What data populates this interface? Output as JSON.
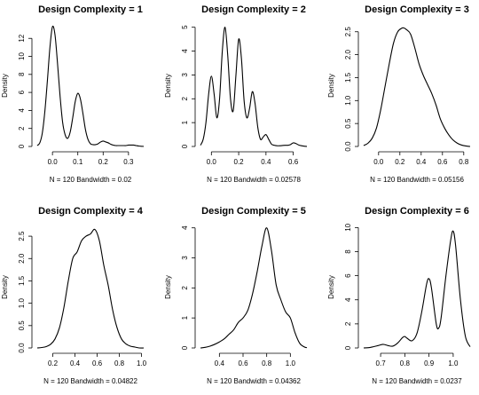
{
  "chart_data": [
    {
      "type": "line",
      "title": "Design Complexity =  1",
      "xlabel": "N = 120   Bandwidth = 0.02",
      "ylabel": "Density",
      "xlim": [
        -0.06,
        0.36
      ],
      "ylim": [
        0,
        13.5
      ],
      "xticks": [
        0.0,
        0.1,
        0.2,
        0.3
      ],
      "xtick_labels": [
        "0.0",
        "0.1",
        "0.2",
        "0.3"
      ],
      "yticks": [
        0,
        2,
        4,
        6,
        8,
        10,
        12
      ],
      "ytick_labels": [
        "0",
        "2",
        "4",
        "6",
        "8",
        "10",
        "12"
      ],
      "series": [
        {
          "x": [
            -0.06,
            -0.05,
            -0.04,
            -0.03,
            -0.02,
            -0.01,
            0.0,
            0.01,
            0.02,
            0.03,
            0.04,
            0.05,
            0.06,
            0.07,
            0.08,
            0.09,
            0.1,
            0.11,
            0.12,
            0.13,
            0.14,
            0.15,
            0.16,
            0.17,
            0.18,
            0.19,
            0.2,
            0.21,
            0.22,
            0.23,
            0.24,
            0.25,
            0.26,
            0.27,
            0.28,
            0.29,
            0.3,
            0.31,
            0.32,
            0.33,
            0.34,
            0.35,
            0.36
          ],
          "y": [
            0.1,
            0.4,
            1.5,
            3.9,
            7.3,
            11.0,
            13.3,
            12.4,
            9.2,
            5.6,
            2.7,
            1.3,
            0.9,
            1.6,
            3.2,
            5.0,
            5.9,
            5.3,
            3.7,
            1.9,
            0.8,
            0.3,
            0.2,
            0.2,
            0.3,
            0.5,
            0.6,
            0.5,
            0.4,
            0.25,
            0.15,
            0.1,
            0.1,
            0.1,
            0.1,
            0.1,
            0.15,
            0.15,
            0.15,
            0.1,
            0.05,
            0.02,
            0.01
          ]
        }
      ]
    },
    {
      "type": "line",
      "title": "Design Complexity =  2",
      "xlabel": "N = 120   Bandwidth = 0.02578",
      "ylabel": "Density",
      "xlim": [
        -0.08,
        0.7
      ],
      "ylim": [
        0,
        5.1
      ],
      "xticks": [
        0.0,
        0.2,
        0.4,
        0.6
      ],
      "xtick_labels": [
        "0.0",
        "0.2",
        "0.4",
        "0.6"
      ],
      "yticks": [
        0,
        1,
        2,
        3,
        4,
        5
      ],
      "ytick_labels": [
        "0",
        "1",
        "2",
        "3",
        "4",
        "5"
      ],
      "series": [
        {
          "x": [
            -0.08,
            -0.06,
            -0.04,
            -0.02,
            0.0,
            0.02,
            0.04,
            0.06,
            0.08,
            0.1,
            0.12,
            0.14,
            0.16,
            0.18,
            0.2,
            0.22,
            0.24,
            0.26,
            0.28,
            0.3,
            0.32,
            0.34,
            0.36,
            0.38,
            0.4,
            0.42,
            0.44,
            0.46,
            0.48,
            0.5,
            0.52,
            0.54,
            0.56,
            0.58,
            0.6,
            0.62,
            0.64,
            0.66,
            0.68,
            0.7
          ],
          "y": [
            0.05,
            0.3,
            1.0,
            2.2,
            2.95,
            2.2,
            1.2,
            2.0,
            4.0,
            5.0,
            3.8,
            2.0,
            1.5,
            3.0,
            4.5,
            3.7,
            1.9,
            1.2,
            1.6,
            2.3,
            1.8,
            0.8,
            0.3,
            0.4,
            0.5,
            0.3,
            0.1,
            0.05,
            0.03,
            0.03,
            0.04,
            0.05,
            0.05,
            0.08,
            0.15,
            0.12,
            0.06,
            0.03,
            0.01,
            0.0
          ]
        }
      ]
    },
    {
      "type": "line",
      "title": "Design Complexity =  3",
      "xlabel": "N = 120   Bandwidth = 0.05156",
      "ylabel": "Density",
      "xlim": [
        -0.14,
        0.86
      ],
      "ylim": [
        0,
        2.65
      ],
      "xticks": [
        0.0,
        0.2,
        0.4,
        0.6,
        0.8
      ],
      "xtick_labels": [
        "0.0",
        "0.2",
        "0.4",
        "0.6",
        "0.8"
      ],
      "yticks": [
        0.0,
        0.5,
        1.0,
        1.5,
        2.0,
        2.5
      ],
      "ytick_labels": [
        "0.0",
        "0.5",
        "1.0",
        "1.5",
        "2.0",
        "2.5"
      ],
      "series": [
        {
          "x": [
            -0.14,
            -0.1,
            -0.06,
            -0.02,
            0.02,
            0.06,
            0.1,
            0.14,
            0.18,
            0.22,
            0.24,
            0.26,
            0.3,
            0.34,
            0.38,
            0.42,
            0.46,
            0.5,
            0.54,
            0.58,
            0.62,
            0.66,
            0.7,
            0.74,
            0.78,
            0.82,
            0.86
          ],
          "y": [
            0.02,
            0.07,
            0.18,
            0.4,
            0.8,
            1.3,
            1.8,
            2.25,
            2.5,
            2.58,
            2.58,
            2.55,
            2.45,
            2.15,
            1.8,
            1.55,
            1.35,
            1.15,
            0.9,
            0.6,
            0.4,
            0.25,
            0.14,
            0.07,
            0.03,
            0.01,
            0.0
          ]
        }
      ]
    },
    {
      "type": "line",
      "title": "Design Complexity =  4",
      "xlabel": "N = 120   Bandwidth = 0.04822",
      "ylabel": "Density",
      "xlim": [
        0.06,
        1.02
      ],
      "ylim": [
        0,
        2.72
      ],
      "xticks": [
        0.2,
        0.4,
        0.6,
        0.8,
        1.0
      ],
      "xtick_labels": [
        "0.2",
        "0.4",
        "0.6",
        "0.8",
        "1.0"
      ],
      "yticks": [
        0.0,
        0.5,
        1.0,
        1.5,
        2.0,
        2.5
      ],
      "ytick_labels": [
        "0.0",
        "0.5",
        "1.0",
        "1.5",
        "2.0",
        "2.5"
      ],
      "series": [
        {
          "x": [
            0.06,
            0.1,
            0.14,
            0.18,
            0.22,
            0.26,
            0.3,
            0.34,
            0.38,
            0.42,
            0.46,
            0.5,
            0.54,
            0.58,
            0.62,
            0.66,
            0.7,
            0.74,
            0.78,
            0.82,
            0.86,
            0.9,
            0.94,
            0.98,
            1.02
          ],
          "y": [
            0.0,
            0.01,
            0.03,
            0.08,
            0.2,
            0.45,
            0.9,
            1.5,
            2.0,
            2.15,
            2.4,
            2.5,
            2.55,
            2.65,
            2.4,
            1.85,
            1.4,
            0.85,
            0.45,
            0.2,
            0.09,
            0.04,
            0.02,
            0.0,
            0.0
          ]
        }
      ]
    },
    {
      "type": "line",
      "title": "Design Complexity =  5",
      "xlabel": "N = 120   Bandwidth = 0.04362",
      "ylabel": "Density",
      "xlim": [
        0.24,
        1.14
      ],
      "ylim": [
        0,
        4.05
      ],
      "xticks": [
        0.4,
        0.6,
        0.8,
        1.0
      ],
      "xtick_labels": [
        "0.4",
        "0.6",
        "0.8",
        "1.0"
      ],
      "yticks": [
        0,
        1,
        2,
        3,
        4
      ],
      "ytick_labels": [
        "0",
        "1",
        "2",
        "3",
        "4"
      ],
      "series": [
        {
          "x": [
            0.24,
            0.28,
            0.32,
            0.36,
            0.4,
            0.44,
            0.48,
            0.52,
            0.56,
            0.6,
            0.64,
            0.68,
            0.72,
            0.76,
            0.8,
            0.84,
            0.88,
            0.92,
            0.96,
            1.0,
            1.04,
            1.08,
            1.12,
            1.14
          ],
          "y": [
            0.0,
            0.02,
            0.06,
            0.12,
            0.2,
            0.3,
            0.45,
            0.6,
            0.85,
            1.0,
            1.25,
            1.8,
            2.55,
            3.4,
            4.0,
            3.25,
            2.1,
            1.6,
            1.2,
            1.0,
            0.5,
            0.15,
            0.03,
            0.01
          ]
        }
      ]
    },
    {
      "type": "line",
      "title": "Design Complexity =  6",
      "xlabel": "N = 120   Bandwidth = 0.0237",
      "ylabel": "Density",
      "xlim": [
        0.63,
        1.07
      ],
      "ylim": [
        0,
        10.1
      ],
      "xticks": [
        0.7,
        0.8,
        0.9,
        1.0
      ],
      "xtick_labels": [
        "0.7",
        "0.8",
        "0.9",
        "1.0"
      ],
      "yticks": [
        0,
        2,
        4,
        6,
        8,
        10
      ],
      "ytick_labels": [
        "0",
        "2",
        "4",
        "6",
        "8",
        "10"
      ],
      "series": [
        {
          "x": [
            0.63,
            0.65,
            0.67,
            0.69,
            0.71,
            0.73,
            0.75,
            0.77,
            0.79,
            0.8,
            0.81,
            0.83,
            0.85,
            0.87,
            0.89,
            0.9,
            0.91,
            0.93,
            0.94,
            0.95,
            0.97,
            0.99,
            1.0,
            1.01,
            1.03,
            1.05,
            1.07
          ],
          "y": [
            0.0,
            0.02,
            0.1,
            0.2,
            0.3,
            0.2,
            0.15,
            0.4,
            0.85,
            0.95,
            0.8,
            0.6,
            1.2,
            3.0,
            5.3,
            5.75,
            5.0,
            2.0,
            1.65,
            2.5,
            6.0,
            9.0,
            9.7,
            8.5,
            4.0,
            1.0,
            0.1
          ]
        }
      ]
    }
  ]
}
